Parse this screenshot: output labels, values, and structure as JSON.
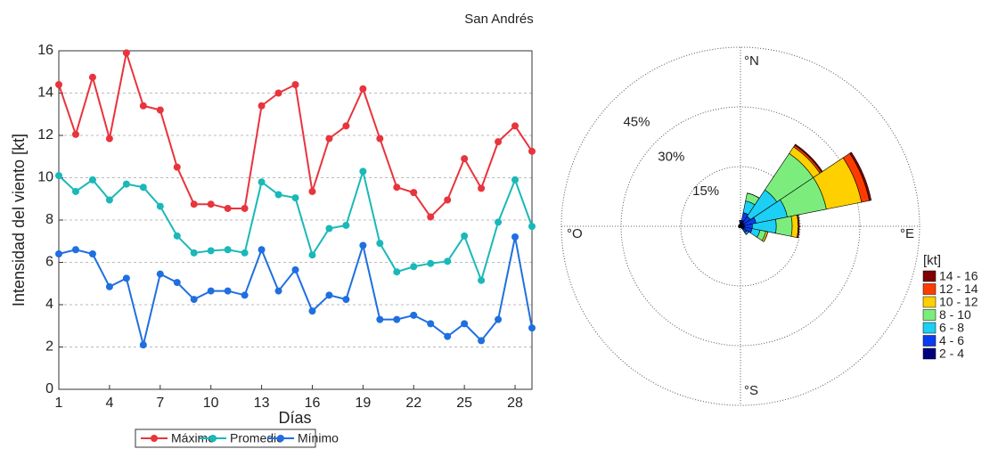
{
  "chart_data": [
    {
      "type": "line",
      "title": "San Andrés",
      "xlabel": "Días",
      "ylabel": "Intensidad del viento [kt]",
      "x": [
        1,
        2,
        3,
        4,
        5,
        6,
        7,
        8,
        9,
        10,
        11,
        12,
        13,
        14,
        15,
        16,
        17,
        18,
        19,
        20,
        21,
        22,
        23,
        24,
        25,
        26,
        27,
        28,
        29
      ],
      "xlim": [
        1,
        29
      ],
      "xticks": [
        1,
        4,
        7,
        10,
        13,
        16,
        19,
        22,
        25,
        28
      ],
      "ylim": [
        0,
        16
      ],
      "yticks": [
        0,
        2,
        4,
        6,
        8,
        10,
        12,
        14,
        16
      ],
      "grid": true,
      "series": [
        {
          "name": "Máximo",
          "color": "#e8343c",
          "values": [
            14.4,
            12.05,
            14.75,
            11.85,
            15.9,
            13.4,
            13.2,
            10.5,
            8.75,
            8.75,
            8.55,
            8.55,
            13.4,
            14.0,
            14.4,
            9.35,
            11.85,
            12.45,
            14.2,
            11.85,
            9.55,
            9.3,
            8.15,
            8.95,
            10.9,
            9.5,
            11.7,
            12.45,
            11.25
          ]
        },
        {
          "name": "Promedio",
          "color": "#1ab8b8",
          "values": [
            10.1,
            9.35,
            9.9,
            8.95,
            9.7,
            9.55,
            8.65,
            7.25,
            6.45,
            6.55,
            6.6,
            6.45,
            9.8,
            9.2,
            9.05,
            6.35,
            7.6,
            7.75,
            10.3,
            6.9,
            5.55,
            5.8,
            5.95,
            6.05,
            7.25,
            5.15,
            7.9,
            9.9,
            7.7
          ]
        },
        {
          "name": "Mínimo",
          "color": "#1f6fe0",
          "values": [
            6.4,
            6.6,
            6.4,
            4.85,
            5.25,
            2.1,
            5.45,
            5.05,
            4.25,
            4.65,
            4.65,
            4.45,
            6.6,
            4.65,
            5.65,
            3.7,
            4.45,
            4.25,
            6.8,
            3.3,
            3.3,
            3.5,
            3.1,
            2.5,
            3.1,
            2.3,
            3.3,
            7.2,
            2.9
          ]
        }
      ]
    },
    {
      "type": "windrose",
      "legend_title": "[kt]",
      "direction_labels": [
        "°N",
        "°E",
        "°S",
        "°O"
      ],
      "directions": [
        0,
        22.5,
        45,
        67.5,
        90,
        112.5,
        135,
        157.5,
        180,
        202.5,
        225,
        247.5,
        270,
        292.5,
        315,
        337.5
      ],
      "rlim": [
        0,
        45
      ],
      "rticks": [
        {
          "value": 15,
          "label": "15%"
        },
        {
          "value": 30,
          "label": "30%"
        },
        {
          "value": 45,
          "label": "45%"
        }
      ],
      "series": [
        {
          "name": "2 - 4",
          "color": "#00007f",
          "values": [
            1,
            1.5,
            1,
            1,
            1,
            1,
            1,
            0.5,
            0.3,
            0.3,
            0.5,
            0.5,
            0.5,
            0.5,
            0.5,
            0.5
          ]
        },
        {
          "name": "4 - 6",
          "color": "#0a3cf0",
          "values": [
            0.5,
            2,
            2,
            3,
            2,
            2,
            1,
            0,
            0,
            0,
            0,
            0,
            0,
            0,
            0,
            0
          ]
        },
        {
          "name": "6 - 8",
          "color": "#1ccff5",
          "values": [
            0,
            3,
            8,
            8,
            6,
            2,
            0.5,
            0,
            0,
            0,
            0,
            0,
            0,
            0,
            0,
            0
          ]
        },
        {
          "name": "8 - 10",
          "color": "#7ced7c",
          "values": [
            0,
            2,
            11,
            10,
            4,
            1.5,
            0,
            0,
            0,
            0,
            0,
            0,
            0,
            0,
            0,
            0
          ]
        },
        {
          "name": "10 - 12",
          "color": "#ffd000",
          "values": [
            0,
            0,
            2,
            9,
            1.5,
            0.5,
            0,
            0,
            0,
            0,
            0,
            0,
            0,
            0,
            0,
            0
          ]
        },
        {
          "name": "12 - 14",
          "color": "#ff3c00",
          "values": [
            0,
            0,
            0.5,
            2,
            0,
            0,
            0,
            0,
            0,
            0,
            0,
            0,
            0,
            0,
            0,
            0
          ]
        },
        {
          "name": "14 - 16",
          "color": "#800000",
          "values": [
            0,
            0,
            0.3,
            0.5,
            0.3,
            0,
            0,
            0,
            0,
            0,
            0,
            0,
            0,
            0,
            0,
            0
          ]
        }
      ]
    }
  ]
}
